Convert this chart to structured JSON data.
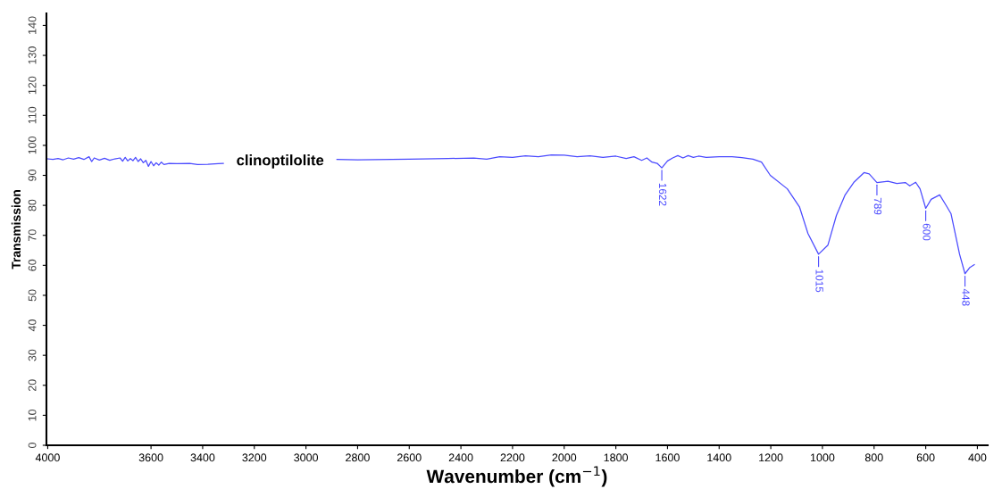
{
  "chart_data": {
    "type": "line",
    "xlabel": "Wavenumber (cm$^{−1}$)",
    "ylabel": "Transmission",
    "xlim": [
      4005,
      360
    ],
    "ylim": [
      0,
      144
    ],
    "xticks": [
      4000,
      3600,
      3400,
      3200,
      3000,
      2800,
      2600,
      2400,
      2200,
      2000,
      1800,
      1600,
      1400,
      1200,
      1000,
      800,
      600,
      400
    ],
    "yticks": [
      0,
      10,
      20,
      30,
      40,
      50,
      60,
      70,
      80,
      90,
      100,
      110,
      120,
      130,
      140
    ],
    "grid": false,
    "legend": false,
    "marker": "none",
    "line_style": "solid",
    "series": [
      {
        "name": "clinoptilolite",
        "color": "#4a4aff",
        "x": [
          4000,
          3980,
          3960,
          3940,
          3920,
          3900,
          3880,
          3860,
          3840,
          3830,
          3820,
          3800,
          3780,
          3760,
          3740,
          3720,
          3710,
          3700,
          3690,
          3680,
          3670,
          3660,
          3650,
          3640,
          3630,
          3620,
          3610,
          3600,
          3590,
          3580,
          3570,
          3560,
          3550,
          3530,
          3500,
          3450,
          3420,
          3380,
          3340,
          3320,
          3100,
          2880,
          2800,
          2600,
          2450,
          2350,
          2300,
          2250,
          2200,
          2150,
          2100,
          2050,
          2000,
          1950,
          1900,
          1850,
          1800,
          1760,
          1730,
          1700,
          1680,
          1660,
          1640,
          1622,
          1600,
          1580,
          1560,
          1540,
          1520,
          1500,
          1480,
          1450,
          1400,
          1350,
          1312,
          1269,
          1236,
          1202,
          1136,
          1089,
          1056,
          1015,
          979,
          946,
          912,
          879,
          839,
          819,
          789,
          746,
          712,
          679,
          662,
          639,
          622,
          600,
          579,
          546,
          522,
          502,
          469,
          448,
          429,
          412
        ],
        "values": [
          95.5,
          95.3,
          95.6,
          95.2,
          95.8,
          95.4,
          95.9,
          95.3,
          96.2,
          94.6,
          95.8,
          95.1,
          95.7,
          95.0,
          95.5,
          95.8,
          94.7,
          96.0,
          94.8,
          95.6,
          94.9,
          96.0,
          94.6,
          95.5,
          94.2,
          95.0,
          93.0,
          94.6,
          93.2,
          94.2,
          93.4,
          94.4,
          93.6,
          94.0,
          93.9,
          94.0,
          93.6,
          93.7,
          93.9,
          94.0,
          null,
          95.3,
          95.2,
          95.4,
          95.6,
          95.8,
          95.4,
          96.2,
          96.0,
          96.5,
          96.2,
          96.8,
          96.7,
          96.2,
          96.5,
          96.0,
          96.4,
          95.6,
          96.2,
          95.0,
          95.8,
          94.4,
          94.0,
          92.5,
          94.8,
          95.8,
          96.6,
          95.8,
          96.6,
          96.0,
          96.4,
          96.0,
          96.2,
          96.2,
          95.9,
          95.4,
          94.4,
          90.0,
          85.5,
          79.5,
          70.6,
          63.7,
          66.7,
          76.6,
          83.5,
          87.6,
          90.9,
          90.5,
          87.6,
          88.0,
          87.3,
          87.6,
          86.5,
          87.7,
          85.5,
          79.0,
          82.0,
          83.5,
          80.1,
          77.2,
          63.7,
          57.2,
          59.3,
          60.2
        ]
      }
    ],
    "annotations": [
      {
        "text": "1622",
        "x": 1622,
        "y": 92.5
      },
      {
        "text": "1015",
        "x": 1015,
        "y": 63.7
      },
      {
        "text": "789",
        "x": 789,
        "y": 87.6
      },
      {
        "text": "600",
        "x": 600,
        "y": 79.0
      },
      {
        "text": "448",
        "x": 448,
        "y": 57.2
      }
    ]
  }
}
